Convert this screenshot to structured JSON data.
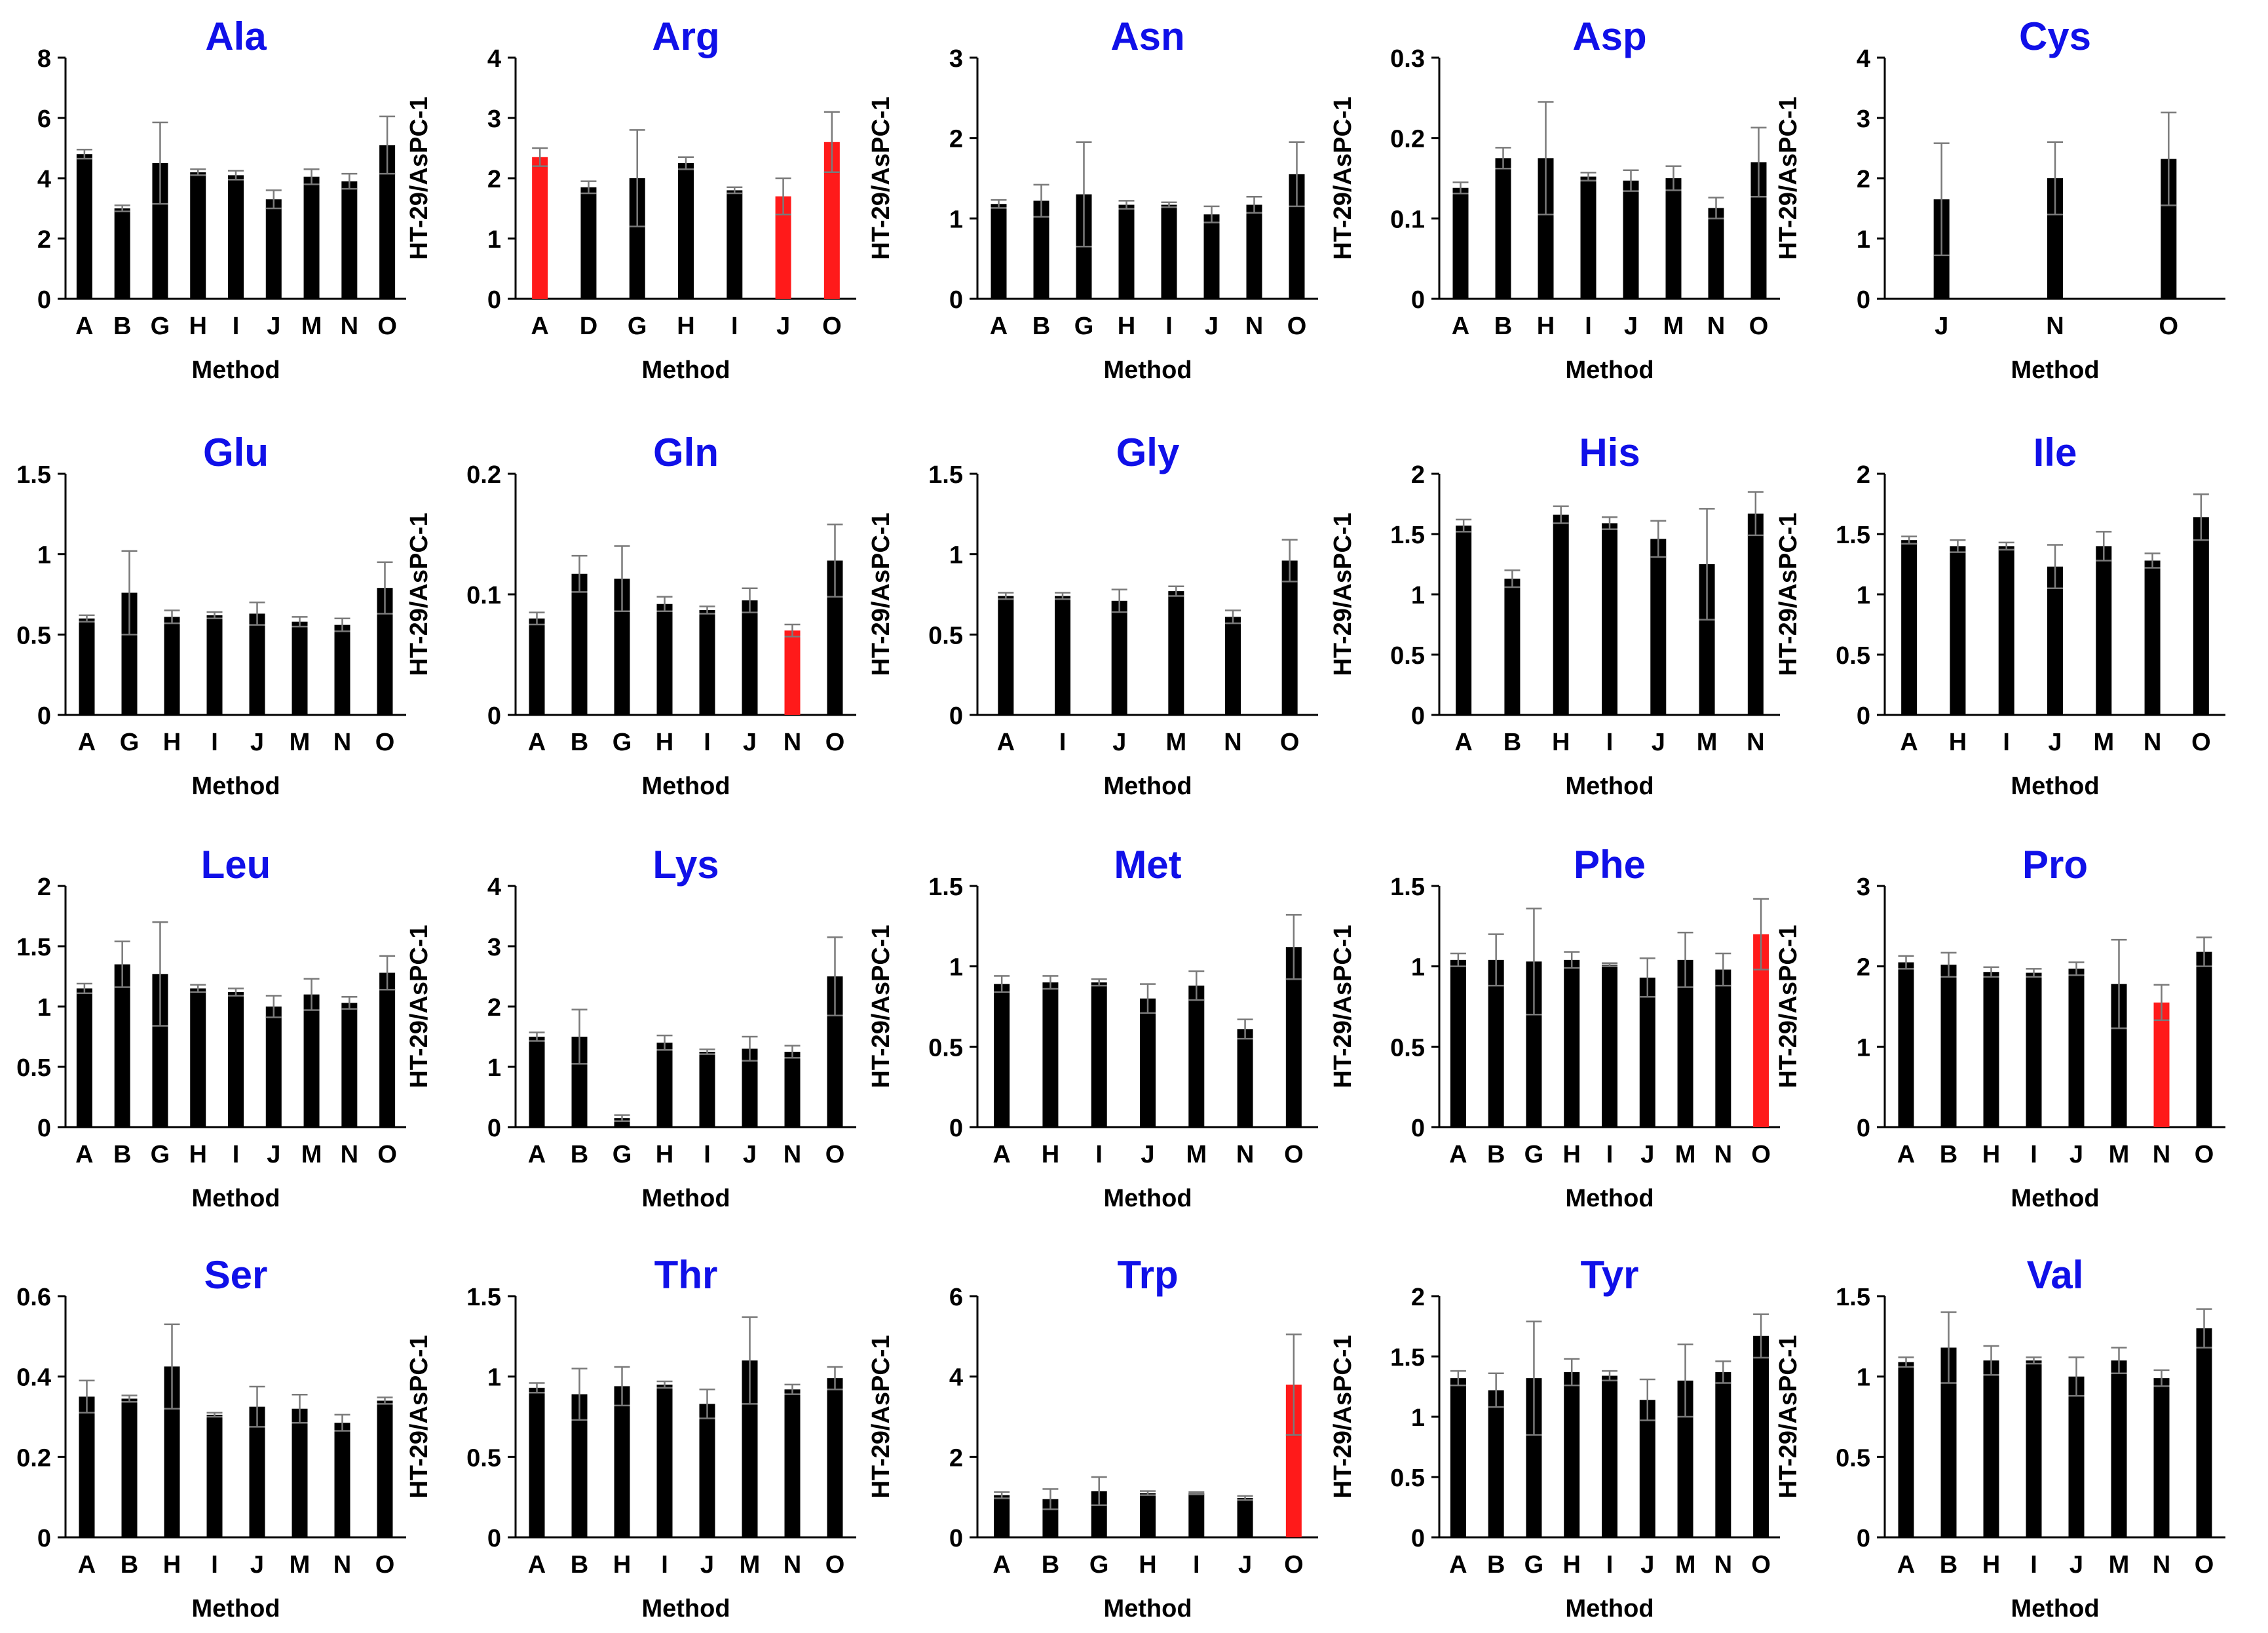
{
  "colors": {
    "bar": "#000000",
    "highlight": "#ff1a1a",
    "title": "#1010e8",
    "axis": "#000000"
  },
  "chart_data": [
    {
      "type": "bar",
      "title": "Ala",
      "xlabel": "Method",
      "ylabel": "HT-29/AsPC-1",
      "ylim": [
        0,
        8
      ],
      "yticks": [
        "0",
        "2",
        "4",
        "6",
        "8"
      ],
      "categories": [
        "A",
        "B",
        "G",
        "H",
        "I",
        "J",
        "M",
        "N",
        "O"
      ],
      "values": [
        4.8,
        3.0,
        4.5,
        4.2,
        4.1,
        3.3,
        4.05,
        3.9,
        5.1
      ],
      "errors": [
        0.15,
        0.1,
        1.35,
        0.1,
        0.15,
        0.3,
        0.25,
        0.25,
        0.95
      ],
      "highlight": [
        false,
        false,
        false,
        false,
        false,
        false,
        false,
        false,
        false
      ]
    },
    {
      "type": "bar",
      "title": "Arg",
      "xlabel": "Method",
      "ylabel": "HT-29/AsPC-1",
      "ylim": [
        0,
        4
      ],
      "yticks": [
        "0",
        "1",
        "2",
        "3",
        "4"
      ],
      "categories": [
        "A",
        "D",
        "G",
        "H",
        "I",
        "J",
        "O"
      ],
      "values": [
        2.35,
        1.85,
        2.0,
        2.25,
        1.8,
        1.7,
        2.6
      ],
      "errors": [
        0.15,
        0.1,
        0.8,
        0.1,
        0.05,
        0.3,
        0.5
      ],
      "highlight": [
        true,
        false,
        false,
        false,
        false,
        true,
        true
      ]
    },
    {
      "type": "bar",
      "title": "Asn",
      "xlabel": "Method",
      "ylabel": "HT-29/AsPC-1",
      "ylim": [
        0,
        3
      ],
      "yticks": [
        "0",
        "1",
        "2",
        "3"
      ],
      "categories": [
        "A",
        "B",
        "G",
        "H",
        "I",
        "J",
        "N",
        "O"
      ],
      "values": [
        1.18,
        1.22,
        1.3,
        1.17,
        1.17,
        1.05,
        1.17,
        1.55
      ],
      "errors": [
        0.05,
        0.2,
        0.65,
        0.05,
        0.03,
        0.1,
        0.1,
        0.4
      ],
      "highlight": [
        false,
        false,
        false,
        false,
        false,
        false,
        false,
        false
      ]
    },
    {
      "type": "bar",
      "title": "Asp",
      "xlabel": "Method",
      "ylabel": "HT-29/AsPC-1",
      "ylim": [
        0,
        0.3
      ],
      "yticks": [
        "0",
        "0.1",
        "0.2",
        "0.3"
      ],
      "categories": [
        "A",
        "B",
        "H",
        "I",
        "J",
        "M",
        "N",
        "O"
      ],
      "values": [
        0.138,
        0.175,
        0.175,
        0.152,
        0.147,
        0.15,
        0.113,
        0.17
      ],
      "errors": [
        0.007,
        0.013,
        0.07,
        0.005,
        0.013,
        0.015,
        0.013,
        0.043
      ],
      "highlight": [
        false,
        false,
        false,
        false,
        false,
        false,
        false,
        false
      ]
    },
    {
      "type": "bar",
      "title": "Cys",
      "xlabel": "Method",
      "ylabel": "HT-29/AsPC-1",
      "ylim": [
        0,
        4
      ],
      "yticks": [
        "0",
        "1",
        "2",
        "3",
        "4"
      ],
      "categories": [
        "J",
        "N",
        "O"
      ],
      "values": [
        1.65,
        2.0,
        2.32
      ],
      "errors": [
        0.93,
        0.6,
        0.77
      ],
      "highlight": [
        false,
        false,
        false
      ]
    },
    {
      "type": "bar",
      "title": "Glu",
      "xlabel": "Method",
      "ylabel": "HT-29/AsPC-1",
      "ylim": [
        0,
        1.5
      ],
      "yticks": [
        "0",
        "0.5",
        "1",
        "1.5"
      ],
      "categories": [
        "A",
        "G",
        "H",
        "I",
        "J",
        "M",
        "N",
        "O"
      ],
      "values": [
        0.6,
        0.76,
        0.61,
        0.62,
        0.63,
        0.58,
        0.56,
        0.79
      ],
      "errors": [
        0.02,
        0.26,
        0.04,
        0.02,
        0.07,
        0.03,
        0.04,
        0.16
      ],
      "highlight": [
        false,
        false,
        false,
        false,
        false,
        false,
        false,
        false
      ]
    },
    {
      "type": "bar",
      "title": "Gln",
      "xlabel": "Method",
      "ylabel": "HT-29/AsPC-1",
      "ylim": [
        0,
        0.2
      ],
      "yticks": [
        "0",
        "0.1",
        "0.2"
      ],
      "categories": [
        "A",
        "B",
        "G",
        "H",
        "I",
        "J",
        "N",
        "O"
      ],
      "values": [
        0.08,
        0.117,
        0.113,
        0.092,
        0.087,
        0.095,
        0.07,
        0.128
      ],
      "errors": [
        0.005,
        0.015,
        0.027,
        0.006,
        0.003,
        0.01,
        0.005,
        0.03
      ],
      "highlight": [
        false,
        false,
        false,
        false,
        false,
        false,
        true,
        false
      ]
    },
    {
      "type": "bar",
      "title": "Gly",
      "xlabel": "Method",
      "ylabel": "HT-29/AsPC-1",
      "ylim": [
        0,
        1.5
      ],
      "yticks": [
        "0",
        "0.5",
        "1",
        "1.5"
      ],
      "categories": [
        "A",
        "I",
        "J",
        "M",
        "N",
        "O"
      ],
      "values": [
        0.74,
        0.74,
        0.71,
        0.77,
        0.61,
        0.96
      ],
      "errors": [
        0.02,
        0.02,
        0.07,
        0.03,
        0.04,
        0.13
      ],
      "highlight": [
        false,
        false,
        false,
        false,
        false,
        false
      ]
    },
    {
      "type": "bar",
      "title": "His",
      "xlabel": "Method",
      "ylabel": "HT-29/AsPC-1",
      "ylim": [
        0,
        2
      ],
      "yticks": [
        "0",
        "0.5",
        "1",
        "1.5",
        "2"
      ],
      "categories": [
        "A",
        "B",
        "H",
        "I",
        "J",
        "M",
        "N"
      ],
      "values": [
        1.57,
        1.13,
        1.66,
        1.59,
        1.46,
        1.25,
        1.67
      ],
      "errors": [
        0.05,
        0.07,
        0.07,
        0.05,
        0.15,
        0.46,
        0.18
      ],
      "highlight": [
        false,
        false,
        false,
        false,
        false,
        false,
        false
      ]
    },
    {
      "type": "bar",
      "title": "Ile",
      "xlabel": "Method",
      "ylabel": "HT-29/AsPC-1",
      "ylim": [
        0,
        2
      ],
      "yticks": [
        "0",
        "0.5",
        "1",
        "1.5",
        "2"
      ],
      "categories": [
        "A",
        "H",
        "I",
        "J",
        "M",
        "N",
        "O"
      ],
      "values": [
        1.45,
        1.4,
        1.4,
        1.23,
        1.4,
        1.28,
        1.64
      ],
      "errors": [
        0.03,
        0.05,
        0.03,
        0.18,
        0.12,
        0.06,
        0.19
      ],
      "highlight": [
        false,
        false,
        false,
        false,
        false,
        false,
        false
      ]
    },
    {
      "type": "bar",
      "title": "Leu",
      "xlabel": "Method",
      "ylabel": "HT-29/AsPC-1",
      "ylim": [
        0,
        2
      ],
      "yticks": [
        "0",
        "0.5",
        "1",
        "1.5",
        "2"
      ],
      "categories": [
        "A",
        "B",
        "G",
        "H",
        "I",
        "J",
        "M",
        "N",
        "O"
      ],
      "values": [
        1.15,
        1.35,
        1.27,
        1.15,
        1.12,
        1.0,
        1.1,
        1.03,
        1.28
      ],
      "errors": [
        0.04,
        0.19,
        0.43,
        0.03,
        0.03,
        0.09,
        0.13,
        0.05,
        0.14
      ],
      "highlight": [
        false,
        false,
        false,
        false,
        false,
        false,
        false,
        false,
        false
      ]
    },
    {
      "type": "bar",
      "title": "Lys",
      "xlabel": "Method",
      "ylabel": "HT-29/AsPC-1",
      "ylim": [
        0,
        4
      ],
      "yticks": [
        "0",
        "1",
        "2",
        "3",
        "4"
      ],
      "categories": [
        "A",
        "B",
        "G",
        "H",
        "I",
        "J",
        "N",
        "O"
      ],
      "values": [
        1.5,
        1.5,
        0.15,
        1.4,
        1.25,
        1.3,
        1.25,
        2.5
      ],
      "errors": [
        0.07,
        0.45,
        0.05,
        0.12,
        0.04,
        0.2,
        0.1,
        0.65
      ],
      "highlight": [
        false,
        false,
        false,
        false,
        false,
        false,
        false,
        false
      ]
    },
    {
      "type": "bar",
      "title": "Met",
      "xlabel": "Method",
      "ylabel": "HT-29/AsPC-1",
      "ylim": [
        0,
        1.5
      ],
      "yticks": [
        "0",
        "0.5",
        "1",
        "1.5"
      ],
      "categories": [
        "A",
        "H",
        "I",
        "J",
        "M",
        "N",
        "O"
      ],
      "values": [
        0.89,
        0.9,
        0.9,
        0.8,
        0.88,
        0.61,
        1.12
      ],
      "errors": [
        0.05,
        0.04,
        0.02,
        0.09,
        0.09,
        0.06,
        0.2
      ],
      "highlight": [
        false,
        false,
        false,
        false,
        false,
        false,
        false
      ]
    },
    {
      "type": "bar",
      "title": "Phe",
      "xlabel": "Method",
      "ylabel": "HT-29/AsPC-1",
      "ylim": [
        0,
        1.5
      ],
      "yticks": [
        "0",
        "0.5",
        "1",
        "1.5"
      ],
      "categories": [
        "A",
        "B",
        "G",
        "H",
        "I",
        "J",
        "M",
        "N",
        "O"
      ],
      "values": [
        1.04,
        1.04,
        1.03,
        1.04,
        1.01,
        0.93,
        1.04,
        0.98,
        1.2
      ],
      "errors": [
        0.04,
        0.16,
        0.33,
        0.05,
        0.01,
        0.12,
        0.17,
        0.1,
        0.22
      ],
      "highlight": [
        false,
        false,
        false,
        false,
        false,
        false,
        false,
        false,
        true
      ]
    },
    {
      "type": "bar",
      "title": "Pro",
      "xlabel": "Method",
      "ylabel": "HT-29/AsPC-1",
      "ylim": [
        0,
        3
      ],
      "yticks": [
        "0",
        "1",
        "2",
        "3"
      ],
      "categories": [
        "A",
        "B",
        "H",
        "I",
        "J",
        "M",
        "N",
        "O"
      ],
      "values": [
        2.05,
        2.02,
        1.93,
        1.92,
        1.97,
        1.78,
        1.55,
        2.18
      ],
      "errors": [
        0.08,
        0.15,
        0.06,
        0.05,
        0.08,
        0.55,
        0.22,
        0.18
      ],
      "highlight": [
        false,
        false,
        false,
        false,
        false,
        false,
        true,
        false
      ]
    },
    {
      "type": "bar",
      "title": "Ser",
      "xlabel": "Method",
      "ylabel": "HT-29/AsPC-1",
      "ylim": [
        0,
        0.6
      ],
      "yticks": [
        "0",
        "0.2",
        "0.4",
        "0.6"
      ],
      "categories": [
        "A",
        "B",
        "H",
        "I",
        "J",
        "M",
        "N",
        "O"
      ],
      "values": [
        0.35,
        0.345,
        0.425,
        0.305,
        0.325,
        0.32,
        0.285,
        0.34
      ],
      "errors": [
        0.04,
        0.008,
        0.105,
        0.005,
        0.05,
        0.035,
        0.02,
        0.008
      ],
      "highlight": [
        false,
        false,
        false,
        false,
        false,
        false,
        false,
        false
      ]
    },
    {
      "type": "bar",
      "title": "Thr",
      "xlabel": "Method",
      "ylabel": "HT-29/AsPC-1",
      "ylim": [
        0,
        1.5
      ],
      "yticks": [
        "0",
        "0.5",
        "1",
        "1.5"
      ],
      "categories": [
        "A",
        "B",
        "H",
        "I",
        "J",
        "M",
        "N",
        "O"
      ],
      "values": [
        0.93,
        0.89,
        0.94,
        0.95,
        0.83,
        1.1,
        0.92,
        0.99
      ],
      "errors": [
        0.03,
        0.16,
        0.12,
        0.02,
        0.09,
        0.27,
        0.03,
        0.07
      ],
      "highlight": [
        false,
        false,
        false,
        false,
        false,
        false,
        false,
        false
      ]
    },
    {
      "type": "bar",
      "title": "Trp",
      "xlabel": "Method",
      "ylabel": "HT-29/AsPC-1",
      "ylim": [
        0,
        6
      ],
      "yticks": [
        "0",
        "2",
        "4",
        "6"
      ],
      "categories": [
        "A",
        "B",
        "G",
        "H",
        "I",
        "J",
        "O"
      ],
      "values": [
        1.05,
        0.95,
        1.15,
        1.1,
        1.1,
        0.98,
        3.8
      ],
      "errors": [
        0.08,
        0.25,
        0.35,
        0.05,
        0.03,
        0.05,
        1.25
      ],
      "highlight": [
        false,
        false,
        false,
        false,
        false,
        false,
        true
      ]
    },
    {
      "type": "bar",
      "title": "Tyr",
      "xlabel": "Method",
      "ylabel": "HT-29/AsPC-1",
      "ylim": [
        0,
        2
      ],
      "yticks": [
        "0",
        "0.5",
        "1",
        "1.5",
        "2"
      ],
      "categories": [
        "A",
        "B",
        "G",
        "H",
        "I",
        "J",
        "M",
        "N",
        "O"
      ],
      "values": [
        1.32,
        1.22,
        1.32,
        1.37,
        1.34,
        1.14,
        1.3,
        1.37,
        1.67
      ],
      "errors": [
        0.06,
        0.14,
        0.47,
        0.11,
        0.04,
        0.17,
        0.3,
        0.09,
        0.18
      ],
      "highlight": [
        false,
        false,
        false,
        false,
        false,
        false,
        false,
        false,
        false
      ]
    },
    {
      "type": "bar",
      "title": "Val",
      "xlabel": "Method",
      "ylabel": "HT-29/AsPC-1",
      "ylim": [
        0,
        1.5
      ],
      "yticks": [
        "0",
        "0.5",
        "1",
        "1.5"
      ],
      "categories": [
        "A",
        "B",
        "H",
        "I",
        "J",
        "M",
        "N",
        "O"
      ],
      "values": [
        1.09,
        1.18,
        1.1,
        1.1,
        1.0,
        1.1,
        0.99,
        1.3
      ],
      "errors": [
        0.03,
        0.22,
        0.09,
        0.02,
        0.12,
        0.08,
        0.05,
        0.12
      ],
      "highlight": [
        false,
        false,
        false,
        false,
        false,
        false,
        false,
        false
      ]
    }
  ]
}
